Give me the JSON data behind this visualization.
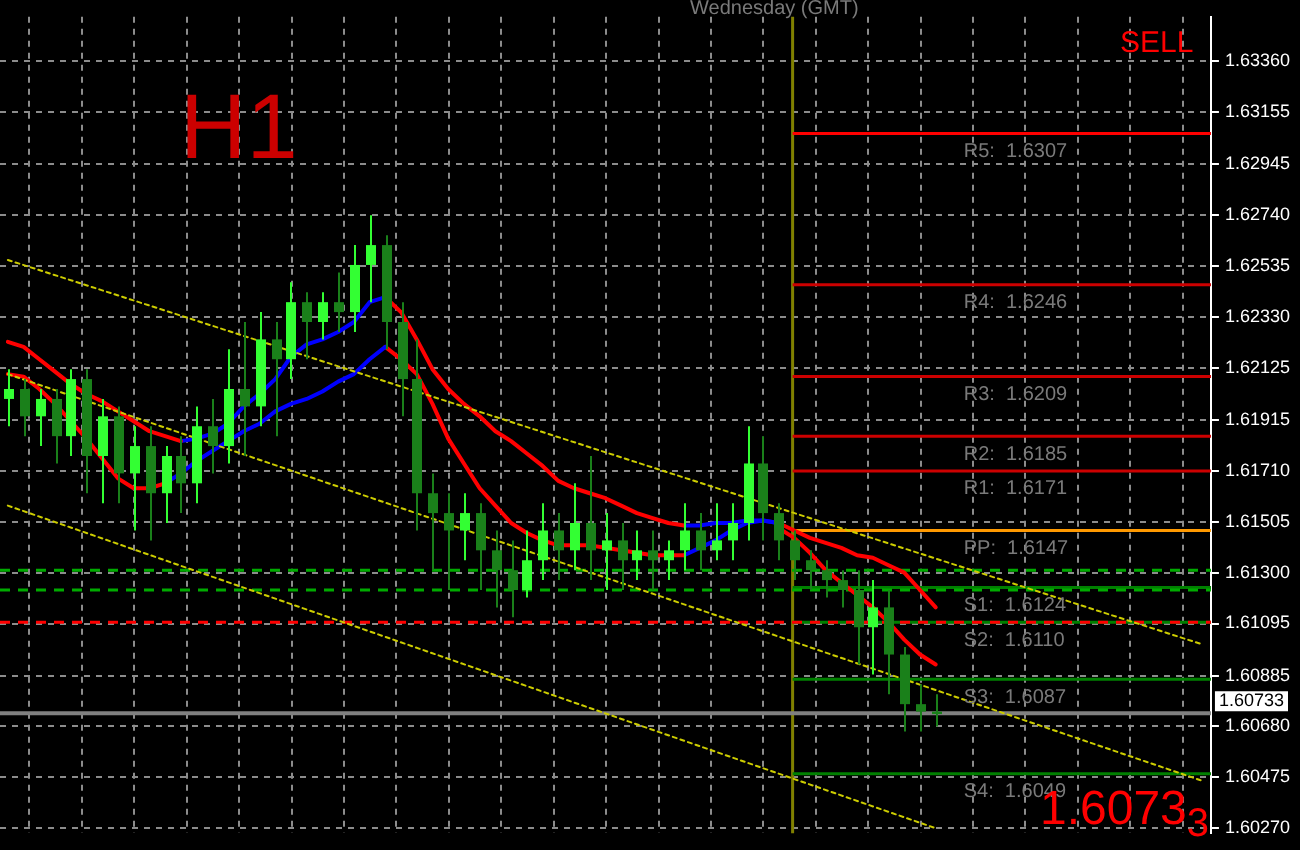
{
  "chart_data": {
    "type": "candlestick",
    "colors": [
      "#33ff33",
      "#1a801a",
      "#33ff33",
      "#1a801a",
      "#33ff33",
      "#1a801a",
      "#33ff33",
      "#1a801a",
      "#33ff33",
      "#1a801a",
      "#33ff33",
      "#1a801a",
      "#33ff33",
      "#1a801a",
      "#33ff33",
      "#1a801a",
      "#33ff33",
      "#1a801a",
      "#33ff33",
      "#1a801a",
      "#33ff33",
      "#1a801a",
      "#33ff33",
      "#33ff33",
      "#1a801a",
      "#1a801a",
      "#1a801a",
      "#1a801a",
      "#1a801a",
      "#33ff33",
      "#1a801a",
      "#1a801a",
      "#1a801a",
      "#33ff33",
      "#33ff33",
      "#1a801a",
      "#33ff33",
      "#1a801a",
      "#33ff33",
      "#1a801a",
      "#33ff33",
      "#1a801a",
      "#33ff33",
      "#33ff33",
      "#1a801a",
      "#33ff33",
      "#33ff33",
      "#33ff33",
      "#1a801a",
      "#1a801a",
      "#1a801a",
      "#1a801a",
      "#1a801a",
      "#1a801a",
      "#1a801a",
      "#33ff33",
      "#1a801a",
      "#1a801a",
      "#1a801a",
      "#1a801a",
      null,
      null,
      null,
      null,
      null,
      null,
      null,
      null,
      null,
      null,
      null,
      null,
      null,
      null,
      null,
      null,
      null
    ],
    "annotations": [
      "Wednesday  (GMT)",
      "H1",
      "SELL",
      "1.6073$_{3}$"
    ],
    "categories": [
      null,
      null,
      null,
      null,
      null,
      null,
      null,
      null,
      null,
      null,
      null,
      null,
      null,
      null,
      null,
      null,
      null,
      null,
      null,
      null,
      null,
      null,
      null,
      null,
      null,
      null,
      null,
      null,
      null,
      null,
      null,
      null,
      null,
      null,
      null,
      null,
      null,
      null,
      null,
      null,
      null,
      null,
      null,
      null,
      null,
      null,
      null,
      null,
      null,
      null,
      null,
      null,
      null,
      null,
      null,
      null,
      null,
      null,
      null,
      null,
      null,
      null,
      null,
      null,
      null,
      null,
      null,
      null,
      null,
      null,
      null,
      null,
      null,
      null,
      null,
      null,
      null
    ],
    "ohlc": [
      [
        1.62,
        1.6212,
        1.6189,
        1.6204
      ],
      [
        1.6204,
        1.6208,
        1.6185,
        1.6193
      ],
      [
        1.6193,
        1.6204,
        1.6181,
        1.62
      ],
      [
        1.62,
        1.6204,
        1.6174,
        1.6185
      ],
      [
        1.6185,
        1.6212,
        1.6177,
        1.6208
      ],
      [
        1.6208,
        1.6212,
        1.6162,
        1.6177
      ],
      [
        1.6177,
        1.62,
        1.6158,
        1.6193
      ],
      [
        1.6193,
        1.6197,
        1.6158,
        1.617
      ],
      [
        1.617,
        1.6189,
        1.6147,
        1.6181
      ],
      [
        1.6181,
        1.6189,
        1.6143,
        1.6162
      ],
      [
        1.6162,
        1.6181,
        1.615,
        1.6177
      ],
      [
        1.6177,
        1.6185,
        1.6154,
        1.6166
      ],
      [
        1.6166,
        1.6197,
        1.6158,
        1.6189
      ],
      [
        1.6189,
        1.62,
        1.617,
        1.6181
      ],
      [
        1.6181,
        1.622,
        1.6174,
        1.6204
      ],
      [
        1.6204,
        1.6231,
        1.6177,
        1.6197
      ],
      [
        1.6197,
        1.6235,
        1.6189,
        1.6224
      ],
      [
        1.6224,
        1.6231,
        1.6185,
        1.6216
      ],
      [
        1.6216,
        1.6247,
        1.6208,
        1.6239
      ],
      [
        1.6239,
        1.6243,
        1.6216,
        1.6231
      ],
      [
        1.6231,
        1.6243,
        1.6224,
        1.6239
      ],
      [
        1.6239,
        1.6251,
        1.6227,
        1.6235
      ],
      [
        1.6235,
        1.6262,
        1.6227,
        1.6254
      ],
      [
        1.6254,
        1.6274,
        1.6239,
        1.6262
      ],
      [
        1.6262,
        1.6266,
        1.622,
        1.6231
      ],
      [
        1.6231,
        1.6239,
        1.6193,
        1.6208
      ],
      [
        1.6208,
        1.6224,
        1.6147,
        1.6162
      ],
      [
        1.6162,
        1.617,
        1.6131,
        1.6154
      ],
      [
        1.6154,
        1.6162,
        1.6123,
        1.6147
      ],
      [
        1.6147,
        1.6162,
        1.6135,
        1.6154
      ],
      [
        1.6154,
        1.6158,
        1.6123,
        1.6139
      ],
      [
        1.6139,
        1.6147,
        1.6116,
        1.6131
      ],
      [
        1.6131,
        1.6143,
        1.6112,
        1.6123
      ],
      [
        1.6123,
        1.6147,
        1.612,
        1.6135
      ],
      [
        1.6135,
        1.6158,
        1.6127,
        1.6147
      ],
      [
        1.6147,
        1.6154,
        1.6127,
        1.6139
      ],
      [
        1.6139,
        1.6166,
        1.6131,
        1.615
      ],
      [
        1.615,
        1.6177,
        1.6127,
        1.6139
      ],
      [
        1.6139,
        1.6154,
        1.6123,
        1.6143
      ],
      [
        1.6143,
        1.615,
        1.6123,
        1.6135
      ],
      [
        1.6135,
        1.6147,
        1.6127,
        1.6139
      ],
      [
        1.6139,
        1.6147,
        1.6123,
        1.6135
      ],
      [
        1.6135,
        1.6143,
        1.6127,
        1.6139
      ],
      [
        1.6139,
        1.6158,
        1.6131,
        1.6147
      ],
      [
        1.6147,
        1.6154,
        1.6131,
        1.6139
      ],
      [
        1.6139,
        1.6158,
        1.6135,
        1.6143
      ],
      [
        1.6143,
        1.6158,
        1.6135,
        1.615
      ],
      [
        1.615,
        1.6189,
        1.6143,
        1.6174
      ],
      [
        1.6174,
        1.6185,
        1.6143,
        1.6154
      ],
      [
        1.6154,
        1.6158,
        1.6135,
        1.6143
      ],
      [
        1.6143,
        1.6147,
        1.6127,
        1.6135
      ],
      [
        1.6135,
        1.6139,
        1.6123,
        1.6131
      ],
      [
        1.6131,
        1.6135,
        1.612,
        1.6127
      ],
      [
        1.6127,
        1.6131,
        1.6116,
        1.6123
      ],
      [
        1.6123,
        1.6131,
        1.6093,
        1.6108
      ],
      [
        1.6108,
        1.6127,
        1.6089,
        1.6116
      ],
      [
        1.6116,
        1.6123,
        1.6081,
        1.6097
      ],
      [
        1.6097,
        1.61,
        1.6066,
        1.6077
      ],
      [
        1.6077,
        1.6085,
        1.6066,
        1.6074
      ],
      [
        1.6074,
        1.6081,
        1.6068,
        1.6073
      ],
      null,
      null,
      null,
      null,
      null,
      null,
      null,
      null,
      null,
      null,
      null,
      null,
      null,
      null,
      null,
      null,
      null
    ],
    "series": [
      {
        "type": "line",
        "color": "#ff0000",
        "values": [
          1.6223,
          1.6221,
          1.6216,
          1.6211,
          1.6206,
          1.6202,
          1.6199,
          1.6195,
          1.6191,
          1.6187,
          1.6185,
          1.6183,
          null,
          null,
          null,
          null,
          null,
          null,
          null,
          null,
          null,
          null,
          null,
          null,
          null,
          null,
          null,
          null,
          null,
          null,
          null,
          null,
          null,
          null,
          null,
          null,
          null,
          null,
          null,
          null,
          null,
          null,
          null,
          null,
          null,
          null,
          null,
          null,
          null,
          null,
          null,
          null,
          null,
          null,
          null,
          null,
          null,
          null,
          null,
          null,
          null,
          null,
          null,
          null,
          null,
          null,
          null,
          null,
          null,
          null,
          null,
          null,
          null,
          null,
          null,
          null,
          null
        ]
      },
      {
        "type": "line",
        "color": "#ff0000",
        "values": [
          1.621,
          1.6209,
          1.6204,
          1.6198,
          1.6191,
          1.6184,
          1.6176,
          1.6168,
          1.6164,
          1.6164,
          1.6166,
          null,
          null,
          null,
          null,
          null,
          null,
          null,
          null,
          null,
          null,
          null,
          null,
          null,
          null,
          null,
          null,
          null,
          null,
          null,
          null,
          null,
          null,
          null,
          null,
          null,
          null,
          null,
          null,
          null,
          null,
          null,
          null,
          null,
          null,
          null,
          null,
          null,
          null,
          null,
          null,
          null,
          null,
          null,
          null,
          null,
          null,
          null,
          null,
          null,
          null,
          null,
          null,
          null,
          null,
          null,
          null,
          null,
          null,
          null,
          null,
          null,
          null,
          null,
          null,
          null,
          null
        ]
      },
      {
        "type": "line",
        "color": "#0000ff",
        "values": [
          null,
          null,
          null,
          null,
          null,
          null,
          null,
          null,
          null,
          null,
          null,
          1.6183,
          1.6184,
          1.6186,
          1.619,
          1.6197,
          1.6202,
          1.6208,
          1.6217,
          1.6222,
          1.6224,
          1.6227,
          1.6231,
          1.6239,
          1.6241,
          null,
          null,
          null,
          null,
          null,
          null,
          null,
          null,
          null,
          null,
          null,
          null,
          null,
          null,
          null,
          null,
          null,
          null,
          null,
          null,
          null,
          null,
          null,
          null,
          null,
          null,
          null,
          null,
          null,
          null,
          null,
          null,
          null,
          null,
          null,
          null,
          null,
          null,
          null,
          null,
          null,
          null,
          null,
          null,
          null,
          null,
          null,
          null,
          null,
          null,
          null,
          null
        ]
      },
      {
        "type": "line",
        "color": "#0000ff",
        "values": [
          null,
          null,
          null,
          null,
          null,
          null,
          null,
          null,
          null,
          null,
          1.6166,
          1.617,
          1.6175,
          1.6179,
          1.6183,
          1.6187,
          1.619,
          1.6195,
          1.6198,
          1.62,
          1.6203,
          1.6207,
          1.621,
          1.6216,
          1.6221,
          null,
          null,
          null,
          null,
          null,
          null,
          null,
          null,
          null,
          null,
          null,
          null,
          null,
          null,
          null,
          null,
          null,
          null,
          null,
          null,
          null,
          null,
          null,
          null,
          null,
          null,
          null,
          null,
          null,
          null,
          null,
          null,
          null,
          null,
          null,
          null,
          null,
          null,
          null,
          null,
          null,
          null,
          null,
          null,
          null,
          null,
          null,
          null,
          null,
          null,
          null,
          null
        ]
      },
      {
        "type": "line",
        "color": "#ff0000",
        "values": [
          null,
          null,
          null,
          null,
          null,
          null,
          null,
          null,
          null,
          null,
          null,
          null,
          null,
          null,
          null,
          null,
          null,
          null,
          null,
          null,
          null,
          null,
          null,
          null,
          1.6241,
          1.6235,
          1.6224,
          1.6212,
          1.6204,
          1.6198,
          1.6193,
          1.6187,
          1.6183,
          1.6178,
          1.6173,
          1.6167,
          1.6164,
          1.6162,
          1.616,
          1.6157,
          1.6154,
          1.6152,
          1.615,
          1.6149,
          null,
          null,
          null,
          null,
          null,
          null,
          null,
          null,
          null,
          null,
          null,
          null,
          null,
          null,
          null,
          null,
          null,
          null,
          null,
          null,
          null,
          null,
          null,
          null,
          null,
          null,
          null,
          null,
          null,
          null,
          null,
          null,
          null
        ]
      },
      {
        "type": "line",
        "color": "#ff0000",
        "values": [
          null,
          null,
          null,
          null,
          null,
          null,
          null,
          null,
          null,
          null,
          null,
          null,
          null,
          null,
          null,
          null,
          null,
          null,
          null,
          null,
          null,
          null,
          null,
          null,
          1.6221,
          1.6216,
          1.621,
          1.6198,
          1.6184,
          1.6174,
          1.6164,
          1.6157,
          1.615,
          1.6146,
          1.6143,
          1.6141,
          1.6141,
          1.6141,
          1.614,
          1.6139,
          1.6138,
          1.6137,
          1.6137,
          1.6137,
          null,
          null,
          null,
          null,
          null,
          null,
          null,
          null,
          null,
          null,
          null,
          null,
          null,
          null,
          null,
          null,
          null,
          null,
          null,
          null,
          null,
          null,
          null,
          null,
          null,
          null,
          null,
          null,
          null,
          null,
          null,
          null,
          null
        ]
      },
      {
        "type": "line",
        "color": "#0000ff",
        "values": [
          null,
          null,
          null,
          null,
          null,
          null,
          null,
          null,
          null,
          null,
          null,
          null,
          null,
          null,
          null,
          null,
          null,
          null,
          null,
          null,
          null,
          null,
          null,
          null,
          null,
          null,
          null,
          null,
          null,
          null,
          null,
          null,
          null,
          null,
          null,
          null,
          null,
          null,
          null,
          null,
          null,
          null,
          null,
          1.6149,
          1.6149,
          1.615,
          1.615,
          1.6151,
          1.6151,
          1.615,
          null,
          null,
          null,
          null,
          null,
          null,
          null,
          null,
          null,
          null,
          null,
          null,
          null,
          null,
          null,
          null,
          null,
          null,
          null,
          null,
          null,
          null,
          null,
          null,
          null,
          null,
          null
        ]
      },
      {
        "type": "line",
        "color": "#0000ff",
        "values": [
          null,
          null,
          null,
          null,
          null,
          null,
          null,
          null,
          null,
          null,
          null,
          null,
          null,
          null,
          null,
          null,
          null,
          null,
          null,
          null,
          null,
          null,
          null,
          null,
          null,
          null,
          null,
          null,
          null,
          null,
          null,
          null,
          null,
          null,
          null,
          null,
          null,
          null,
          null,
          null,
          null,
          null,
          null,
          1.6137,
          1.614,
          1.6143,
          1.6147,
          1.615,
          1.6151,
          1.615,
          null,
          null,
          null,
          null,
          null,
          null,
          null,
          null,
          null,
          null,
          null,
          null,
          null,
          null,
          null,
          null,
          null,
          null,
          null,
          null,
          null,
          null,
          null,
          null,
          null,
          null,
          null
        ]
      },
      {
        "type": "line",
        "color": "#ff0000",
        "values": [
          null,
          null,
          null,
          null,
          null,
          null,
          null,
          null,
          null,
          null,
          null,
          null,
          null,
          null,
          null,
          null,
          null,
          null,
          null,
          null,
          null,
          null,
          null,
          null,
          null,
          null,
          null,
          null,
          null,
          null,
          null,
          null,
          null,
          null,
          null,
          null,
          null,
          null,
          null,
          null,
          null,
          null,
          null,
          null,
          null,
          null,
          null,
          null,
          null,
          1.615,
          1.6147,
          1.6144,
          1.6142,
          1.614,
          1.6137,
          1.6136,
          1.6133,
          1.613,
          1.6123,
          1.6116,
          null,
          null,
          null,
          null,
          null,
          null,
          null,
          null,
          null,
          null,
          null,
          null,
          null,
          null,
          null,
          null,
          null
        ]
      },
      {
        "type": "line",
        "color": "#ff0000",
        "values": [
          null,
          null,
          null,
          null,
          null,
          null,
          null,
          null,
          null,
          null,
          null,
          null,
          null,
          null,
          null,
          null,
          null,
          null,
          null,
          null,
          null,
          null,
          null,
          null,
          null,
          null,
          null,
          null,
          null,
          null,
          null,
          null,
          null,
          null,
          null,
          null,
          null,
          null,
          null,
          null,
          null,
          null,
          null,
          null,
          null,
          null,
          null,
          null,
          null,
          1.6148,
          1.6144,
          1.6138,
          1.6131,
          1.6126,
          1.6121,
          1.6116,
          1.611,
          1.6103,
          1.6097,
          1.6093,
          null,
          null,
          null,
          null,
          null,
          null,
          null,
          null,
          null,
          null,
          null,
          null,
          null,
          null,
          null,
          null,
          null
        ]
      },
      {
        "type": "line",
        "color": "#cccc00",
        "line_style": "dotted",
        "values": [
          1.6256,
          null,
          null,
          null,
          null,
          null,
          null,
          null,
          null,
          null,
          null,
          null,
          null,
          null,
          null,
          null,
          null,
          null,
          null,
          null,
          null,
          null,
          null,
          null,
          null,
          null,
          null,
          null,
          null,
          null,
          null,
          null,
          null,
          null,
          null,
          null,
          null,
          null,
          null,
          null,
          null,
          null,
          null,
          null,
          null,
          null,
          null,
          null,
          null,
          null,
          null,
          null,
          null,
          null,
          null,
          null,
          null,
          null,
          null,
          null,
          null,
          null,
          null,
          null,
          null,
          null,
          null,
          null,
          null,
          null,
          null,
          null,
          null,
          null,
          null,
          null,
          1.6101
        ]
      },
      {
        "type": "line",
        "color": "#cccc00",
        "line_style": "dotted",
        "values": [
          1.621,
          null,
          null,
          null,
          null,
          null,
          null,
          null,
          null,
          null,
          null,
          null,
          null,
          null,
          null,
          null,
          null,
          null,
          null,
          null,
          null,
          null,
          null,
          null,
          null,
          null,
          null,
          null,
          null,
          null,
          null,
          null,
          null,
          null,
          null,
          null,
          null,
          null,
          null,
          null,
          null,
          null,
          null,
          null,
          null,
          null,
          null,
          null,
          null,
          null,
          null,
          null,
          null,
          null,
          null,
          null,
          null,
          null,
          null,
          null,
          null,
          null,
          null,
          null,
          null,
          null,
          null,
          null,
          null,
          null,
          null,
          null,
          null,
          null,
          null,
          null,
          1.6046
        ]
      },
      {
        "type": "line",
        "color": "#cccc00",
        "line_style": "dotted",
        "values": [
          1.6157,
          null,
          null,
          null,
          null,
          null,
          null,
          null,
          null,
          null,
          null,
          null,
          null,
          null,
          null,
          null,
          null,
          null,
          null,
          null,
          null,
          null,
          null,
          null,
          null,
          null,
          null,
          null,
          null,
          null,
          null,
          null,
          null,
          null,
          null,
          null,
          null,
          null,
          null,
          null,
          null,
          null,
          null,
          null,
          null,
          null,
          null,
          null,
          null,
          null,
          null,
          null,
          null,
          null,
          null,
          null,
          null,
          null,
          null,
          1.6027,
          null,
          null,
          null,
          null,
          null,
          null,
          null,
          null,
          null,
          null,
          null,
          null,
          null,
          null,
          null,
          null,
          null
        ]
      }
    ],
    "ylim": [
      1.6025,
      1.6354
    ],
    "yticks": [
      {
        "value": 1.6336,
        "label": "1.63360"
      },
      {
        "value": 1.63155,
        "label": "1.63155"
      },
      {
        "value": 1.62945,
        "label": "1.62945"
      },
      {
        "value": 1.6274,
        "label": "1.62740"
      },
      {
        "value": 1.62535,
        "label": "1.62535"
      },
      {
        "value": 1.6233,
        "label": "1.62330"
      },
      {
        "value": 1.62125,
        "label": "1.62125"
      },
      {
        "value": 1.61915,
        "label": "1.61915"
      },
      {
        "value": 1.6171,
        "label": "1.61710"
      },
      {
        "value": 1.61505,
        "label": "1.61505"
      },
      {
        "value": 1.613,
        "label": "1.61300"
      },
      {
        "value": 1.61095,
        "label": "1.61095"
      },
      {
        "value": 1.60885,
        "label": "1.60885"
      },
      {
        "value": 1.6068,
        "label": "1.60680"
      },
      {
        "value": 1.60475,
        "label": "1.60475"
      },
      {
        "value": 1.6027,
        "label": "1.60270"
      }
    ],
    "ref_lines": [
      {
        "axis": "y",
        "value": 1.6307,
        "label": "R5:  1.6307",
        "color": "#ff0000"
      },
      {
        "axis": "y",
        "value": 1.6246,
        "label": "R4:  1.6246",
        "color": "#cc0000"
      },
      {
        "axis": "y",
        "value": 1.6209,
        "label": "R3:  1.6209",
        "color": "#cc0000"
      },
      {
        "axis": "y",
        "value": 1.6185,
        "label": "R2:  1.6185",
        "color": "#cc0000"
      },
      {
        "axis": "y",
        "value": 1.6171,
        "label": "R1:  1.6171",
        "color": "#cc0000"
      },
      {
        "axis": "y",
        "value": 1.6147,
        "label": "PP:  1.6147",
        "color": "#ff9900"
      },
      {
        "axis": "y",
        "value": 1.6124,
        "label": "S1:  1.6124",
        "color": "#008000"
      },
      {
        "axis": "y",
        "value": 1.611,
        "label": "S2:  1.6110",
        "color": "#008000"
      },
      {
        "axis": "y",
        "value": 1.6087,
        "label": "S3:  1.6087",
        "color": "#008000"
      },
      {
        "axis": "y",
        "value": 1.6049,
        "label": "S4:  1.6049",
        "color": "#008000"
      },
      {
        "axis": "y",
        "value": 1.6131,
        "color": "#00aa00",
        "line_style": "dashed"
      },
      {
        "axis": "y",
        "value": 1.6123,
        "color": "#00aa00",
        "line_style": "dashed"
      },
      {
        "axis": "y",
        "value": 1.611,
        "color": "#ff0000",
        "line_style": "dashed"
      },
      {
        "axis": "y",
        "value": 1.60733,
        "label": "1.60733",
        "color": "#808080"
      }
    ],
    "grid": true,
    "legend": false,
    "marker": "none",
    "tick_labels": "y"
  }
}
